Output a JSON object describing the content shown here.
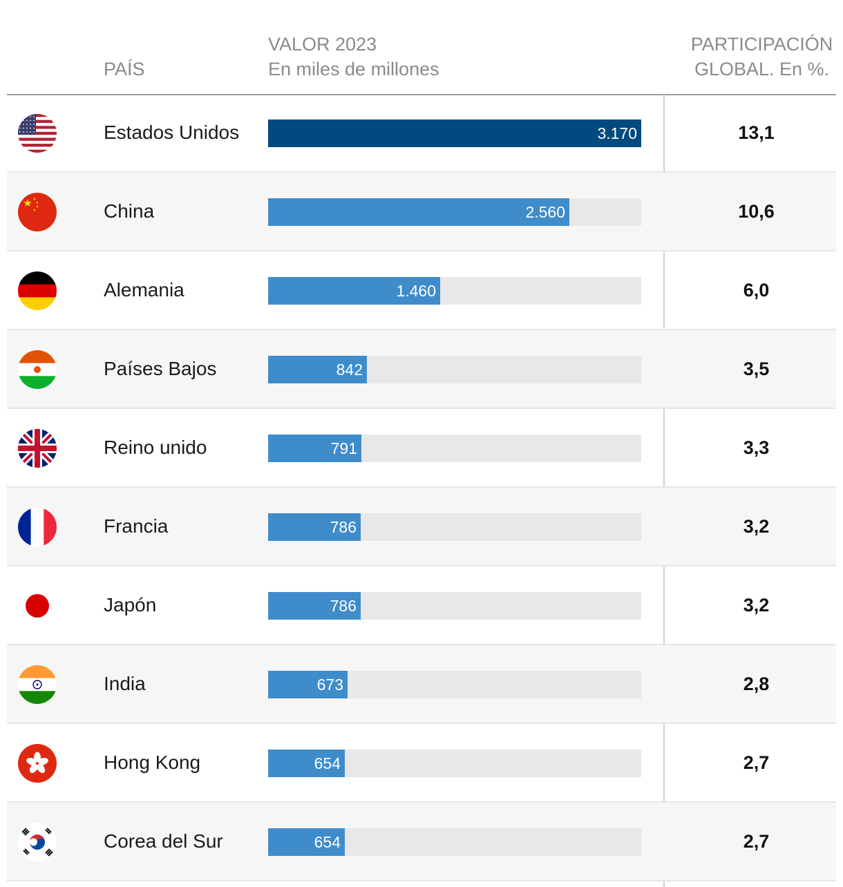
{
  "colors": {
    "bar_top": "#004a80",
    "bar": "#3f8ccb",
    "track": "#e8e8e8"
  },
  "header": {
    "country": "PAÍS",
    "value_line1": "VALOR 2023",
    "value_line2": "En miles de millones",
    "share_line1": "PARTICIPACIÓN",
    "share_line2": "GLOBAL. En %."
  },
  "chart_data": {
    "type": "bar",
    "title": "",
    "xlabel": "VALOR 2023 En miles de millones",
    "ylabel": "PAÍS",
    "xlim": [
      0,
      3170
    ],
    "categories": [
      "Estados Unidos",
      "China",
      "Alemania",
      "Países Bajos",
      "Reino unido",
      "Francia",
      "Japón",
      "India",
      "Hong Kong",
      "Corea del Sur"
    ],
    "values": [
      3170,
      2560,
      1460,
      842,
      791,
      786,
      786,
      673,
      654,
      654
    ],
    "value_labels": [
      "3.170",
      "2.560",
      "1.460",
      "842",
      "791",
      "786",
      "786",
      "673",
      "654",
      "654"
    ],
    "shares": [
      "13,1",
      "10,6",
      "6,0",
      "3,5",
      "3,3",
      "3,2",
      "3,2",
      "2,8",
      "2,7",
      "2,7"
    ],
    "flags": [
      "us-flag-icon",
      "cn-flag-icon",
      "de-flag-icon",
      "nl-flag-icon",
      "uk-flag-icon",
      "fr-flag-icon",
      "jp-flag-icon",
      "in-flag-icon",
      "hk-flag-icon",
      "kr-flag-icon"
    ]
  }
}
